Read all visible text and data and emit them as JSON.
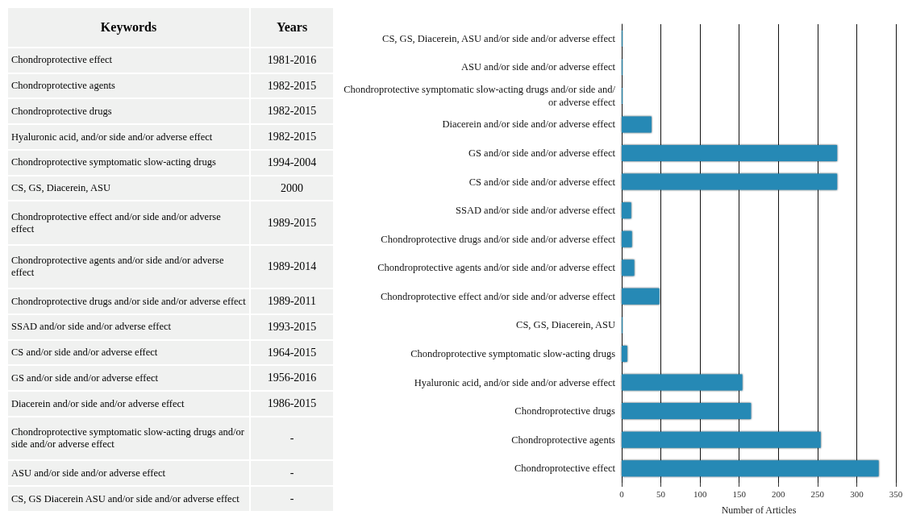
{
  "chart_data": [
    {
      "type": "other",
      "annotations": [
        "Keywords",
        "Years",
        "Chondroprotective effect",
        "1981-2016",
        "Chondroprotective agents",
        "1982-2015",
        "Chondroprotective drugs",
        "1982-2015",
        "Hyaluronic acid, and/or side and/or adverse effect",
        "1982-2015",
        "Chondroprotective symptomatic slow-acting drugs",
        "1994-2004",
        "CS, GS, Diacerein, ASU",
        "2000",
        "Chondroprotective effect and/or side and/or adverse effect",
        "1989-2015",
        "Chondroprotective agents and/or side and/or adverse effect",
        "1989-2014",
        "Chondroprotective drugs and/or side and/or adverse effect",
        "1989-2011",
        "SSAD and/or side and/or adverse effect",
        "1993-2015",
        "CS and/or side and/or adverse effect",
        "1964-2015",
        "GS and/or side and/or adverse effect",
        "1956-2016",
        "Diacerein and/or side and/or adverse effect",
        "1986-2015",
        "Chondroprotective symptomatic slow-acting drugs and/or side and/or adverse effect",
        "-",
        "ASU and/or side and/or adverse effect",
        "-",
        "CS, GS Diacerein ASU and/or side and/or adverse effect",
        "-"
      ]
    },
    {
      "type": "bar",
      "orientation": "horizontal",
      "xlabel": "Number of Articles",
      "categories": [
        "CS, GS, Diacerein, ASU and/or side and/or adverse effect",
        "ASU and/or side and/or adverse effect",
        "Chondroprotective symptomatic slow-acting drugs and/or side and/or adverse effect",
        "Diacerein and/or side and/or adverse effect",
        "GS and/or side and/or adverse effect",
        "CS and/or side and/or adverse effect",
        "SSAD and/or side and/or adverse effect",
        "Chondroprotective drugs and/or side and/or adverse effect",
        "Chondroprotective agents and/or side and/or adverse effect",
        "Chondroprotective effect and/or side and/or adverse effect",
        "CS, GS, Diacerein, ASU",
        "Chondroprotective symptomatic slow-acting drugs",
        "Hyaluronic acid, and/or side and/or adverse effect",
        "Chondroprotective drugs",
        "Chondroprotective agents",
        "Chondroprotective effect"
      ],
      "values": [
        1,
        1,
        1,
        38,
        275,
        275,
        12,
        13,
        16,
        48,
        1,
        7,
        154,
        165,
        254,
        328
      ],
      "color": "#2589b5",
      "xlim": [
        0,
        350
      ],
      "xticks": [
        0,
        50,
        100,
        150,
        200,
        250,
        300,
        350
      ],
      "grid": "x"
    }
  ]
}
